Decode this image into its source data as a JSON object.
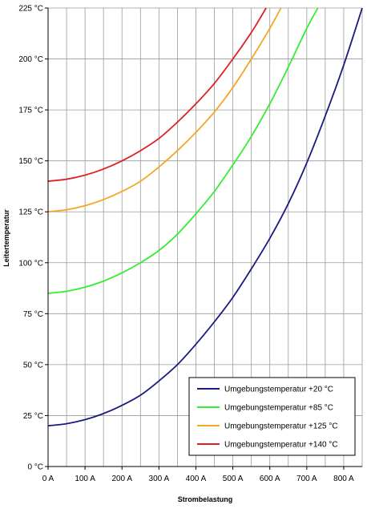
{
  "chart_data": {
    "type": "line",
    "xlabel": "Strombelastung",
    "ylabel": "Leitertemperatur",
    "xlim": [
      0,
      850
    ],
    "ylim": [
      0,
      225
    ],
    "x_ticks": [
      0,
      100,
      200,
      300,
      400,
      500,
      600,
      700,
      800
    ],
    "x_tick_labels": [
      "0 A",
      "100 A",
      "200 A",
      "300 A",
      "400 A",
      "500 A",
      "600 A",
      "700 A",
      "800 A"
    ],
    "y_ticks": [
      0,
      25,
      50,
      75,
      100,
      125,
      150,
      175,
      200,
      225
    ],
    "y_tick_labels": [
      "0 °C",
      "25 °C",
      "50 °C",
      "75 °C",
      "100 °C",
      "125 °C",
      "150 °C",
      "175 °C",
      "200 °C",
      "225 °C"
    ],
    "grid": true,
    "legend_position": "bottom-right",
    "series": [
      {
        "name": "Umgebungstemperatur +20 °C",
        "color": "#1a1a80",
        "x": [
          0,
          50,
          100,
          150,
          200,
          250,
          300,
          350,
          400,
          450,
          500,
          550,
          600,
          650,
          700,
          750,
          800,
          850
        ],
        "y": [
          20,
          21,
          23,
          26,
          30,
          35,
          42,
          50,
          60,
          71,
          83,
          97,
          112,
          129,
          149,
          172,
          197,
          225
        ]
      },
      {
        "name": "Umgebungstemperatur +85 °C",
        "color": "#33ee33",
        "x": [
          0,
          50,
          100,
          150,
          200,
          250,
          300,
          350,
          400,
          450,
          500,
          550,
          600,
          650,
          700,
          730
        ],
        "y": [
          85,
          86,
          88,
          91,
          95,
          100,
          106,
          114,
          124,
          135,
          148,
          162,
          178,
          196,
          215,
          225
        ]
      },
      {
        "name": "Umgebungstemperatur +125 °C",
        "color": "#f5a623",
        "x": [
          0,
          50,
          100,
          150,
          200,
          250,
          300,
          350,
          400,
          450,
          500,
          550,
          600,
          630
        ],
        "y": [
          125,
          126,
          128,
          131,
          135,
          140,
          147,
          155,
          164,
          174,
          186,
          200,
          215,
          225
        ]
      },
      {
        "name": "Umgebungstemperatur +140 °C",
        "color": "#e02020",
        "x": [
          0,
          50,
          100,
          150,
          200,
          250,
          300,
          350,
          400,
          450,
          500,
          550,
          590
        ],
        "y": [
          140,
          141,
          143,
          146,
          150,
          155,
          161,
          169,
          178,
          188,
          200,
          213,
          225
        ]
      }
    ]
  }
}
